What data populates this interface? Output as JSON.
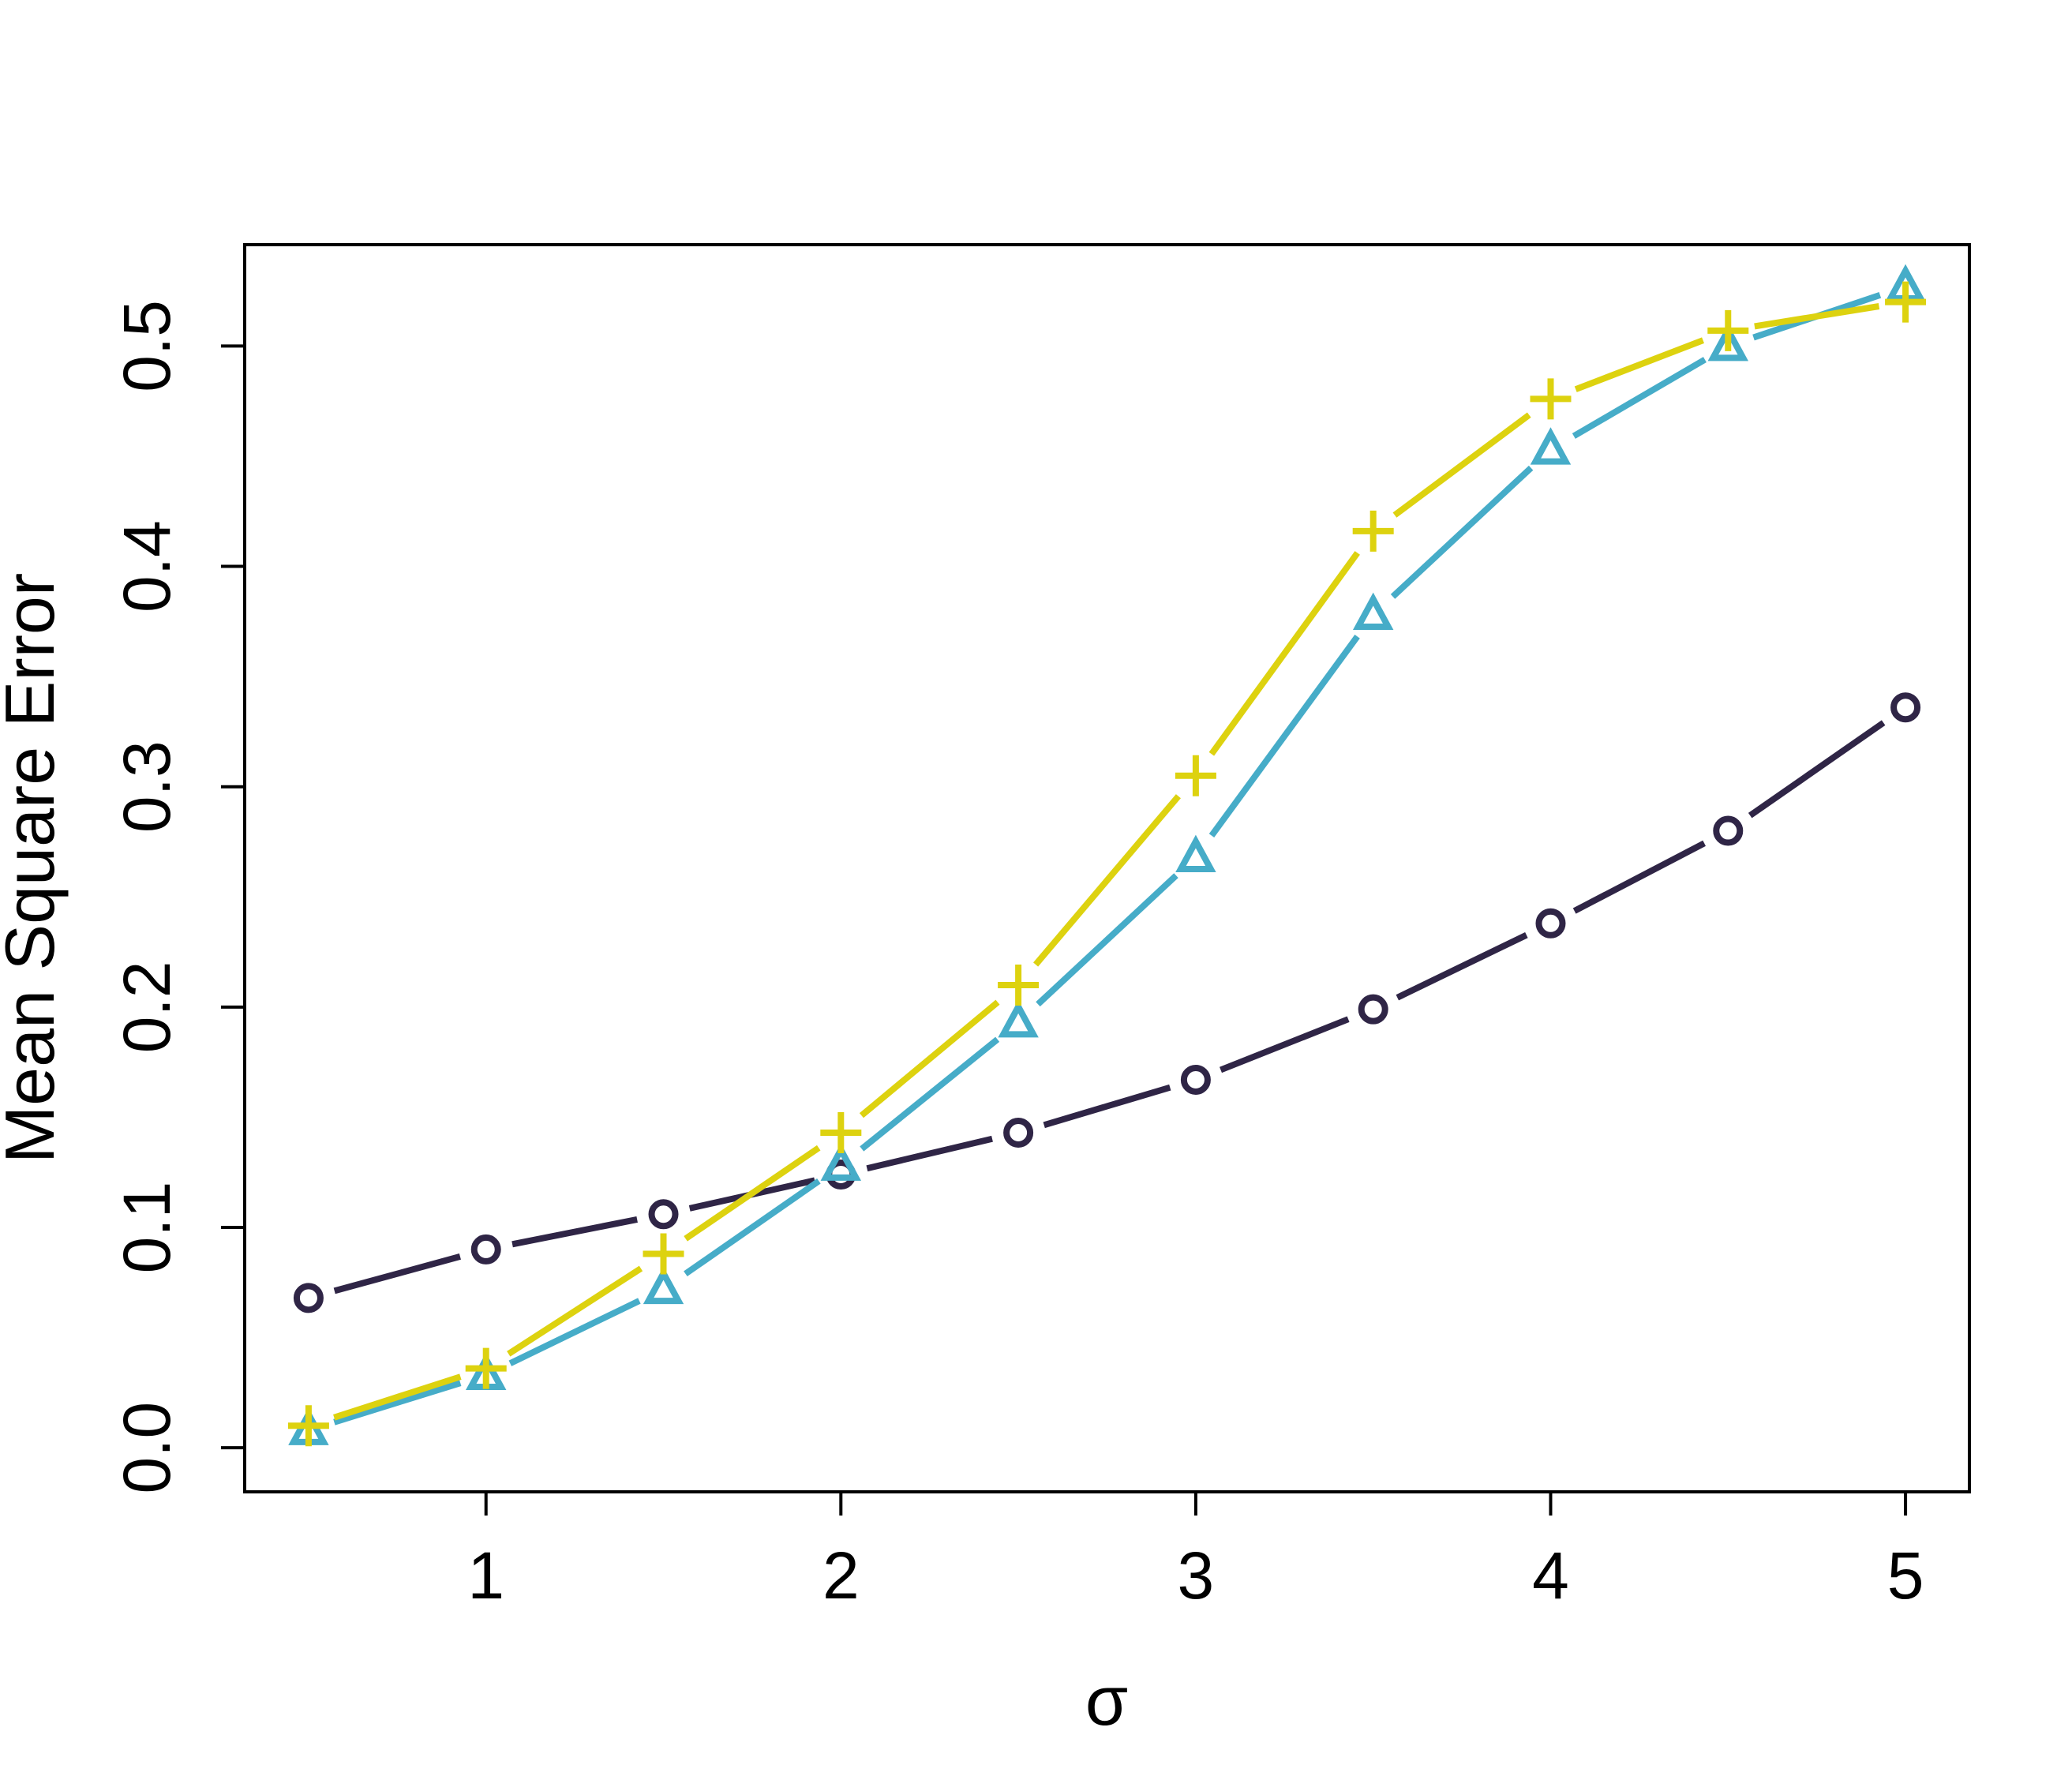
{
  "chart_data": {
    "type": "line",
    "title": "",
    "xlabel": "σ",
    "ylabel": "Mean Square Error",
    "xlim": [
      0.32,
      5.18
    ],
    "ylim": [
      -0.02,
      0.546
    ],
    "x_ticks": [
      1,
      2,
      3,
      4,
      5
    ],
    "y_ticks": [
      0.0,
      0.1,
      0.2,
      0.3,
      0.4,
      0.5
    ],
    "x_tick_labels": [
      "1",
      "2",
      "3",
      "4",
      "5"
    ],
    "y_tick_labels": [
      "0.0",
      "0.1",
      "0.2",
      "0.3",
      "0.4",
      "0.5"
    ],
    "grid": false,
    "legend": "none",
    "x": [
      0.5,
      1.0,
      1.5,
      2.0,
      2.5,
      3.0,
      3.5,
      4.0,
      4.5,
      5.0
    ],
    "series": [
      {
        "marker": "circle",
        "color": "#2f2546",
        "values": [
          0.068,
          0.09,
          0.106,
          0.124,
          0.143,
          0.167,
          0.199,
          0.238,
          0.28,
          0.336
        ]
      },
      {
        "marker": "triangle",
        "color": "#46acc8",
        "values": [
          0.008,
          0.033,
          0.072,
          0.128,
          0.193,
          0.268,
          0.378,
          0.453,
          0.5,
          0.527
        ]
      },
      {
        "marker": "plus",
        "color": "#ddd20f",
        "values": [
          0.01,
          0.036,
          0.088,
          0.143,
          0.21,
          0.305,
          0.416,
          0.476,
          0.507,
          0.52
        ]
      }
    ]
  }
}
